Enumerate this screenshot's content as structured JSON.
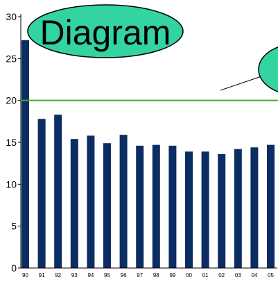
{
  "chart_data": {
    "type": "bar",
    "categories": [
      "90",
      "91",
      "92",
      "93",
      "94",
      "95",
      "96",
      "97",
      "98",
      "99",
      "00",
      "01",
      "02",
      "03",
      "04",
      "05"
    ],
    "values": [
      27.2,
      17.8,
      18.3,
      15.4,
      15.8,
      14.9,
      15.9,
      14.6,
      14.7,
      14.6,
      13.9,
      13.9,
      13.6,
      14.2,
      14.4,
      14.7
    ],
    "y_ticks": [
      "0",
      "5",
      "10",
      "15",
      "20",
      "25",
      "30"
    ],
    "ylim": [
      0,
      30
    ],
    "reference_line": {
      "value": 20,
      "color": "#44a832"
    },
    "bar_color": "#0c2d63",
    "grid": false,
    "title": "",
    "xlabel": "",
    "ylabel": ""
  },
  "annotations": {
    "diagram_label": "Diagram",
    "callout_fill": "#34d3a2",
    "callout_stroke": "#000000"
  }
}
